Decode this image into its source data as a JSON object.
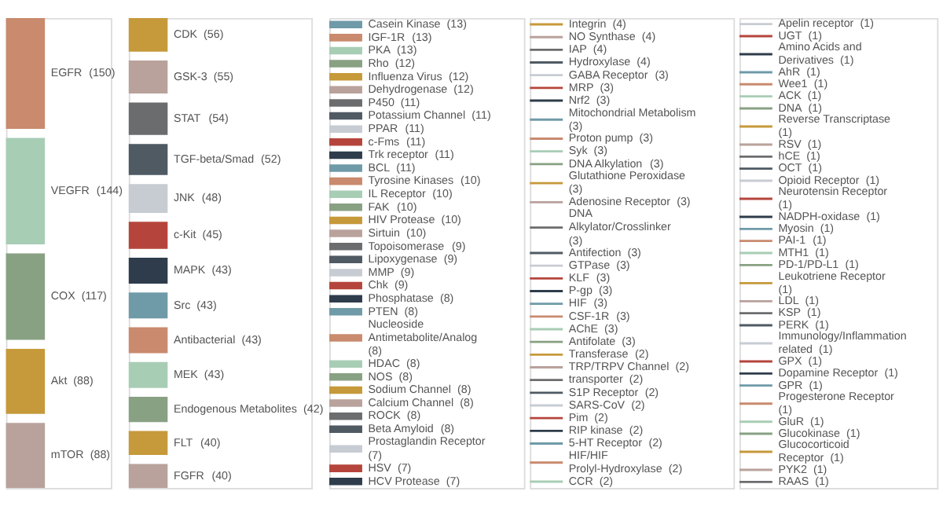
{
  "chart_data": [
    {
      "type": "other",
      "categories": [
        "EGFR",
        "VEGFR",
        "COX",
        "Akt",
        "mTOR"
      ],
      "values": [
        150,
        144,
        117,
        88,
        88
      ],
      "value_labels": [
        "(150)",
        "(144)",
        "(117)",
        "(88)",
        "(88)"
      ],
      "colors": [
        "#c98a6e",
        "#a8cdb5",
        "#88a183",
        "#c6993a",
        "#b9a29c"
      ]
    },
    {
      "type": "other",
      "categories": [
        "CDK",
        "GSK-3",
        "STAT",
        "TGF-beta/Smad",
        "JNK",
        "c-Kit",
        "MAPK",
        "Src",
        "Antibacterial",
        "MEK",
        "Endogenous Metabolites",
        "FLT",
        "FGFR"
      ],
      "values": [
        56,
        55,
        54,
        52,
        48,
        45,
        43,
        43,
        43,
        43,
        42,
        40,
        40
      ],
      "value_labels": [
        "(56)",
        "(55)",
        "(54)",
        "(52)",
        "(48)",
        "(45)",
        "(43)",
        "(43)",
        "(43)",
        "(43)",
        "(42)",
        "(40)",
        "(40)"
      ],
      "colors": [
        "#c6993a",
        "#b9a29c",
        "#6b6c6e",
        "#4f5a63",
        "#c7ccd3",
        "#b5453c",
        "#2e3c4b",
        "#6f9aa8",
        "#c98a6e",
        "#a8cdb5",
        "#88a183",
        "#c6993a",
        "#b9a29c"
      ]
    },
    {
      "type": "other",
      "categories": [
        "Casein Kinase",
        "IGF-1R",
        "PKA",
        "Rho",
        "Influenza Virus",
        "Dehydrogenase",
        "P450",
        "Potassium Channel",
        "PPAR",
        "c-Fms",
        "Trk receptor",
        "BCL",
        "Tyrosine Kinases",
        "IL Receptor",
        "FAK",
        "HIV Protease",
        "Sirtuin",
        "Topoisomerase",
        "Lipoxygenase",
        "MMP",
        "Chk",
        "Phosphatase",
        "PTEN",
        "Nucleoside Antimetabolite/Analog",
        "HDAC",
        "NOS",
        "Sodium Channel",
        "Calcium Channel",
        "ROCK",
        "Beta Amyloid",
        "Prostaglandin Receptor",
        "HSV",
        "HCV Protease"
      ],
      "values": [
        13,
        13,
        13,
        12,
        12,
        12,
        11,
        11,
        11,
        11,
        11,
        11,
        10,
        10,
        10,
        10,
        10,
        9,
        9,
        9,
        9,
        8,
        8,
        8,
        8,
        8,
        8,
        8,
        8,
        8,
        7,
        7,
        7
      ],
      "value_labels": [
        "(13)",
        "(13)",
        "(13)",
        "(12)",
        "(12)",
        "(12)",
        "(11)",
        "(11)",
        "(11)",
        "(11)",
        "(11)",
        "(11)",
        "(10)",
        "(10)",
        "(10)",
        "(10)",
        "(10)",
        "(9)",
        "(9)",
        "(9)",
        "(9)",
        "(8)",
        "(8)",
        "(8)",
        "(8)",
        "(8)",
        "(8)",
        "(8)",
        "(8)",
        "(8)",
        "(7)",
        "(7)",
        "(7)"
      ],
      "colors": [
        "#6f9aa8",
        "#c98a6e",
        "#a8cdb5",
        "#88a183",
        "#c6993a",
        "#b9a29c",
        "#6b6c6e",
        "#4f5a63",
        "#c7ccd3",
        "#b5453c",
        "#2e3c4b",
        "#6f9aa8",
        "#c98a6e",
        "#a8cdb5",
        "#88a183",
        "#c6993a",
        "#b9a29c",
        "#6b6c6e",
        "#4f5a63",
        "#c7ccd3",
        "#b5453c",
        "#2e3c4b",
        "#6f9aa8",
        "#c98a6e",
        "#a8cdb5",
        "#88a183",
        "#c6993a",
        "#b9a29c",
        "#6b6c6e",
        "#4f5a63",
        "#c7ccd3",
        "#b5453c",
        "#2e3c4b"
      ]
    },
    {
      "type": "other",
      "categories": [
        "Integrin",
        "NO Synthase",
        "IAP",
        "Hydroxylase",
        "GABA Receptor",
        "MRP",
        "Nrf2",
        "Mitochondrial Metabolism",
        "Proton pump",
        "Syk",
        "DNA Alkylation",
        "Glutathione Peroxidase",
        "Adenosine Receptor",
        "DNA Alkylator/Crosslinker",
        "Antifection",
        "GTPase",
        "KLF",
        "P-gp",
        "HIF",
        "CSF-1R",
        "AChE",
        "Antifolate",
        "Transferase",
        "TRP/TRPV Channel",
        "transporter",
        "S1P Receptor",
        "SARS-CoV",
        "Pim",
        "RIP kinase",
        "5-HT Receptor",
        "HIF/HIF Prolyl-Hydroxylase",
        "CCR"
      ],
      "values": [
        4,
        4,
        4,
        4,
        3,
        3,
        3,
        3,
        3,
        3,
        3,
        3,
        3,
        3,
        3,
        3,
        3,
        3,
        3,
        3,
        3,
        3,
        2,
        2,
        2,
        2,
        2,
        2,
        2,
        2,
        2,
        2
      ],
      "value_labels": [
        "(4)",
        "(4)",
        "(4)",
        "(4)",
        "(3)",
        "(3)",
        "(3)",
        "(3)",
        "(3)",
        "(3)",
        "(3)",
        "(3)",
        "(3)",
        "(3)",
        "(3)",
        "(3)",
        "(3)",
        "(3)",
        "(3)",
        "(3)",
        "(3)",
        "(3)",
        "(2)",
        "(2)",
        "(2)",
        "(2)",
        "(2)",
        "(2)",
        "(2)",
        "(2)",
        "(2)",
        "(2)"
      ],
      "colors": [
        "#c6993a",
        "#b9a29c",
        "#6b6c6e",
        "#4f5a63",
        "#c7ccd3",
        "#b5453c",
        "#2e3c4b",
        "#6f9aa8",
        "#c98a6e",
        "#a8cdb5",
        "#88a183",
        "#c6993a",
        "#b9a29c",
        "#6b6c6e",
        "#4f5a63",
        "#c7ccd3",
        "#b5453c",
        "#2e3c4b",
        "#6f9aa8",
        "#c98a6e",
        "#a8cdb5",
        "#88a183",
        "#c6993a",
        "#b9a29c",
        "#6b6c6e",
        "#4f5a63",
        "#c7ccd3",
        "#b5453c",
        "#2e3c4b",
        "#6f9aa8",
        "#c98a6e",
        "#a8cdb5"
      ]
    },
    {
      "type": "other",
      "categories": [
        "Apelin receptor",
        "UGT",
        "Amino Acids and Derivatives",
        "AhR",
        "Wee1",
        "ACK",
        "DNA",
        "Reverse Transcriptase",
        "RSV",
        "hCE",
        "OCT",
        "Opioid Receptor",
        "Neurotensin Receptor",
        "NADPH-oxidase",
        "Myosin",
        "PAI-1",
        "MTH1",
        "PD-1/PD-L1",
        "Leukotriene Receptor",
        "LDL",
        "KSP",
        "PERK",
        "Immunology/Inflammation related",
        "GPX",
        "Dopamine Receptor",
        "GPR",
        "Progesterone Receptor",
        "GluR",
        "Glucokinase",
        "Glucocorticoid Receptor",
        "PYK2",
        "RAAS"
      ],
      "values": [
        1,
        1,
        1,
        1,
        1,
        1,
        1,
        1,
        1,
        1,
        1,
        1,
        1,
        1,
        1,
        1,
        1,
        1,
        1,
        1,
        1,
        1,
        1,
        1,
        1,
        1,
        1,
        1,
        1,
        1,
        1,
        1
      ],
      "value_labels": [
        "(1)",
        "(1)",
        "(1)",
        "(1)",
        "(1)",
        "(1)",
        "(1)",
        "(1)",
        "(1)",
        "(1)",
        "(1)",
        "(1)",
        "(1)",
        "(1)",
        "(1)",
        "(1)",
        "(1)",
        "(1)",
        "(1)",
        "(1)",
        "(1)",
        "(1)",
        "(1)",
        "(1)",
        "(1)",
        "(1)",
        "(1)",
        "(1)",
        "(1)",
        "(1)",
        "(1)",
        "(1)"
      ],
      "colors": [
        "#c7ccd3",
        "#b5453c",
        "#2e3c4b",
        "#6f9aa8",
        "#c98a6e",
        "#a8cdb5",
        "#88a183",
        "#c6993a",
        "#b9a29c",
        "#6b6c6e",
        "#4f5a63",
        "#c7ccd3",
        "#b5453c",
        "#2e3c4b",
        "#6f9aa8",
        "#c98a6e",
        "#a8cdb5",
        "#88a183",
        "#c6993a",
        "#b9a29c",
        "#6b6c6e",
        "#4f5a63",
        "#c7ccd3",
        "#b5453c",
        "#2e3c4b",
        "#6f9aa8",
        "#c98a6e",
        "#a8cdb5",
        "#88a183",
        "#c6993a",
        "#b9a29c",
        "#6b6c6e"
      ]
    }
  ]
}
